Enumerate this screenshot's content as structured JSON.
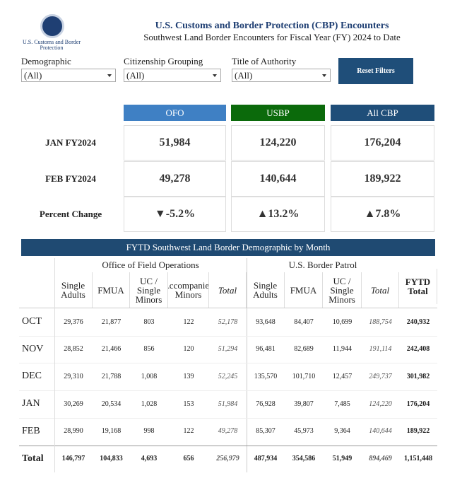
{
  "header": {
    "logo_text": "U.S. Customs and Border Protection",
    "title": "U.S. Customs and Border Protection (CBP) Encounters",
    "subtitle": "Southwest Land Border Encounters for Fiscal Year (FY) 2024 to Date"
  },
  "filters": [
    {
      "label": "Demographic",
      "value": "(All)"
    },
    {
      "label": "Citizenship Grouping",
      "value": "(All)"
    },
    {
      "label": "Title of Authority",
      "value": "(All)"
    }
  ],
  "reset_button": "Reset Filters",
  "summary": {
    "columns": [
      "OFO",
      "USBP",
      "All CBP"
    ],
    "rows": [
      {
        "label": "JAN FY2024",
        "values": [
          "51,984",
          "124,220",
          "176,204"
        ]
      },
      {
        "label": "FEB FY2024",
        "values": [
          "49,278",
          "140,644",
          "189,922"
        ]
      },
      {
        "label": "Percent Change",
        "values": [
          "▼-5.2%",
          "▲13.2%",
          "▲7.8%"
        ]
      }
    ]
  },
  "table": {
    "title": "FYTD Southwest Land Border Demographic by Month",
    "groups": [
      "Office of Field Operations",
      "U.S. Border Patrol"
    ],
    "columns": [
      "Single Adults",
      "FMUA",
      "UC / Single Minors",
      "Accompanied Minors",
      "Total",
      "Single Adults",
      "FMUA",
      "UC / Single Minors",
      "Total",
      "FYTD Total"
    ],
    "rows": [
      [
        "OCT",
        "29,376",
        "21,877",
        "803",
        "122",
        "52,178",
        "93,648",
        "84,407",
        "10,699",
        "188,754",
        "240,932"
      ],
      [
        "NOV",
        "28,852",
        "21,466",
        "856",
        "120",
        "51,294",
        "96,481",
        "82,689",
        "11,944",
        "191,114",
        "242,408"
      ],
      [
        "DEC",
        "29,310",
        "21,788",
        "1,008",
        "139",
        "52,245",
        "135,570",
        "101,710",
        "12,457",
        "249,737",
        "301,982"
      ],
      [
        "JAN",
        "30,269",
        "20,534",
        "1,028",
        "153",
        "51,984",
        "76,928",
        "39,807",
        "7,485",
        "124,220",
        "176,204"
      ],
      [
        "FEB",
        "28,990",
        "19,168",
        "998",
        "122",
        "49,278",
        "85,307",
        "45,973",
        "9,364",
        "140,644",
        "189,922"
      ],
      [
        "Total",
        "146,797",
        "104,833",
        "4,693",
        "656",
        "256,979",
        "487,934",
        "354,586",
        "51,949",
        "894,469",
        "1,151,448"
      ]
    ]
  }
}
